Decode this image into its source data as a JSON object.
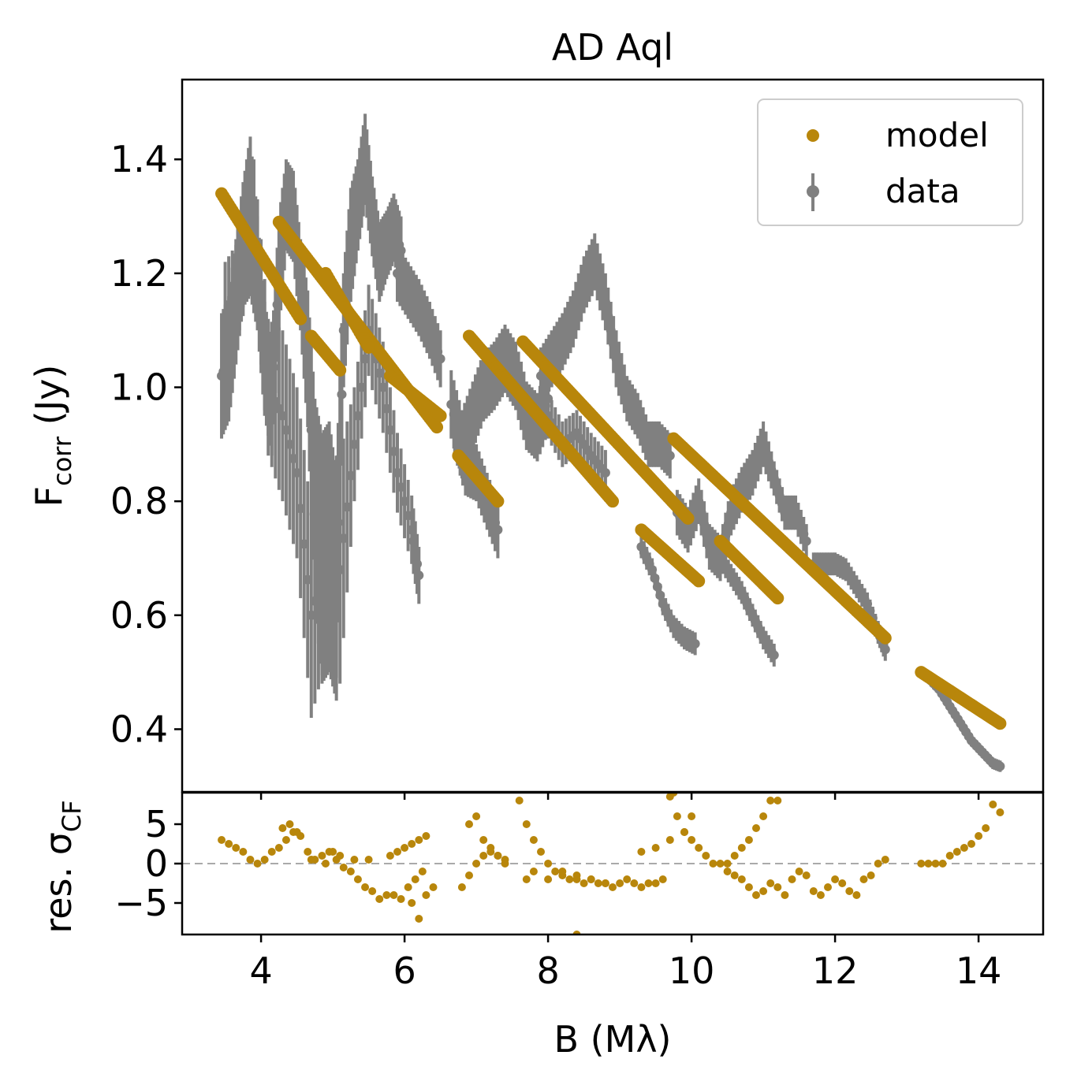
{
  "chart_data": [
    {
      "type": "scatter",
      "title": "AD Aql",
      "xlabel": "B (Mλ)",
      "ylabel": {
        "main": "F",
        "sub": "corr",
        "unit": " (Jy)"
      },
      "xlim": [
        2.9,
        14.9
      ],
      "ylim": [
        0.29,
        1.54
      ],
      "xticks": [
        4,
        6,
        8,
        10,
        12,
        14
      ],
      "xtick_labels": [
        "4",
        "6",
        "8",
        "10",
        "12",
        "14"
      ],
      "yticks": [
        0.4,
        0.6,
        0.8,
        1.0,
        1.2,
        1.4
      ],
      "ytick_labels": [
        "0.4",
        "0.6",
        "0.8",
        "1.0",
        "1.2",
        "1.4"
      ],
      "legend": {
        "position": "top-right",
        "entries": [
          "model",
          "data"
        ]
      },
      "colors": {
        "model": "#b8860b",
        "data": "#808080"
      },
      "series": [
        {
          "name": "data",
          "marker": "point-with-errorbar",
          "segments": [
            {
              "x": [
                3.45,
                3.55,
                3.65,
                3.75,
                3.85,
                3.95,
                4.05,
                4.15,
                4.25,
                4.35,
                4.45,
                4.55,
                4.65,
                4.75,
                4.85,
                4.95,
                5.05,
                5.15,
                5.25,
                5.35,
                5.45,
                5.55,
                5.65,
                5.75,
                5.85,
                5.95
              ],
              "y": [
                1.02,
                1.05,
                1.15,
                1.25,
                1.3,
                1.2,
                1.05,
                0.98,
                1.2,
                1.32,
                1.3,
                1.18,
                1.05,
                0.8,
                0.7,
                0.72,
                0.65,
                1.1,
                1.25,
                1.32,
                1.4,
                1.3,
                1.22,
                1.25,
                1.28,
                1.24
              ],
              "err": [
                0.11,
                0.11,
                0.11,
                0.11,
                0.14,
                0.1,
                0.1,
                0.1,
                0.1,
                0.08,
                0.08,
                0.08,
                0.12,
                0.18,
                0.22,
                0.22,
                0.2,
                0.1,
                0.1,
                0.08,
                0.08,
                0.07,
                0.07,
                0.06,
                0.06,
                0.06
              ]
            },
            {
              "x": [
                3.5,
                3.7,
                3.9,
                4.1,
                4.3,
                4.5,
                4.7,
                4.9,
                5.1,
                5.3,
                5.5,
                5.7,
                5.9,
                6.1,
                6.2
              ],
              "y": [
                1.12,
                1.18,
                1.3,
                1.0,
                0.95,
                0.85,
                0.6,
                0.7,
                0.68,
                0.9,
                1.1,
                1.0,
                0.85,
                0.75,
                0.67
              ],
              "err": [
                0.1,
                0.08,
                0.1,
                0.12,
                0.15,
                0.15,
                0.18,
                0.18,
                0.2,
                0.1,
                0.08,
                0.08,
                0.07,
                0.06,
                0.05
              ]
            },
            {
              "x": [
                5.9,
                6.05,
                6.2,
                6.35,
                6.5
              ],
              "y": [
                1.2,
                1.17,
                1.14,
                1.1,
                1.05
              ],
              "err": [
                0.05,
                0.05,
                0.05,
                0.05,
                0.05
              ]
            },
            {
              "x": [
                6.7,
                6.85,
                7.0,
                7.15,
                7.3
              ],
              "y": [
                0.93,
                0.86,
                0.85,
                0.8,
                0.75
              ],
              "err": [
                0.05,
                0.05,
                0.05,
                0.05,
                0.05
              ]
            },
            {
              "x": [
                6.65,
                6.8,
                6.95,
                7.1,
                7.25,
                7.4,
                7.55,
                7.7,
                7.85,
                8.0
              ],
              "y": [
                0.97,
                0.9,
                0.95,
                1.0,
                1.02,
                1.05,
                1.02,
                0.95,
                0.93,
                0.98
              ],
              "err": [
                0.06,
                0.06,
                0.06,
                0.06,
                0.06,
                0.06,
                0.06,
                0.06,
                0.06,
                0.06
              ]
            },
            {
              "x": [
                7.9,
                8.05,
                8.2,
                8.35,
                8.5,
                8.65,
                8.8,
                8.95,
                9.1,
                9.25,
                9.4,
                9.55,
                9.7
              ],
              "y": [
                1.02,
                1.05,
                1.08,
                1.12,
                1.18,
                1.22,
                1.15,
                1.05,
                0.98,
                0.95,
                0.9,
                0.9,
                0.88
              ],
              "err": [
                0.05,
                0.05,
                0.05,
                0.05,
                0.05,
                0.05,
                0.05,
                0.05,
                0.04,
                0.04,
                0.04,
                0.04,
                0.04
              ]
            },
            {
              "x": [
                8.0,
                8.2,
                8.4,
                8.6,
                8.8
              ],
              "y": [
                0.95,
                0.9,
                0.92,
                0.88,
                0.85
              ],
              "err": [
                0.04,
                0.04,
                0.04,
                0.04,
                0.04
              ]
            },
            {
              "x": [
                9.3,
                9.45,
                9.6,
                9.75,
                9.9,
                10.05
              ],
              "y": [
                0.72,
                0.68,
                0.62,
                0.58,
                0.56,
                0.55
              ],
              "err": [
                0.02,
                0.02,
                0.02,
                0.02,
                0.02,
                0.02
              ]
            },
            {
              "x": [
                9.8,
                9.95,
                10.1,
                10.25,
                10.4,
                10.55,
                10.7,
                10.85,
                11.0,
                11.15,
                11.3,
                11.45,
                11.6
              ],
              "y": [
                0.78,
                0.75,
                0.8,
                0.72,
                0.7,
                0.78,
                0.82,
                0.85,
                0.9,
                0.84,
                0.78,
                0.78,
                0.73
              ],
              "err": [
                0.04,
                0.04,
                0.04,
                0.04,
                0.04,
                0.04,
                0.04,
                0.04,
                0.04,
                0.03,
                0.03,
                0.03,
                0.03
              ]
            },
            {
              "x": [
                10.4,
                10.55,
                10.7,
                10.85,
                11.0,
                11.15
              ],
              "y": [
                0.7,
                0.67,
                0.64,
                0.6,
                0.56,
                0.53
              ],
              "err": [
                0.02,
                0.02,
                0.02,
                0.02,
                0.02,
                0.02
              ]
            },
            {
              "x": [
                11.7,
                11.85,
                12.0,
                12.15,
                12.3,
                12.45,
                12.6,
                12.7
              ],
              "y": [
                0.69,
                0.69,
                0.69,
                0.68,
                0.65,
                0.62,
                0.57,
                0.54
              ],
              "err": [
                0.02,
                0.02,
                0.02,
                0.02,
                0.02,
                0.02,
                0.02,
                0.02
              ]
            },
            {
              "x": [
                13.3,
                13.45,
                13.6,
                13.75,
                13.9,
                14.05,
                14.2,
                14.3
              ],
              "y": [
                0.49,
                0.47,
                0.44,
                0.41,
                0.38,
                0.36,
                0.34,
                0.335
              ],
              "err": [
                0.01,
                0.01,
                0.01,
                0.01,
                0.01,
                0.01,
                0.01,
                0.01
              ]
            }
          ]
        },
        {
          "name": "model",
          "marker": "point",
          "segments": [
            {
              "x": [
                3.45,
                4.55
              ],
              "y": [
                1.34,
                1.12
              ]
            },
            {
              "x": [
                4.7,
                5.1
              ],
              "y": [
                1.09,
                1.03
              ]
            },
            {
              "x": [
                4.25,
                6.45
              ],
              "y": [
                1.29,
                0.93
              ]
            },
            {
              "x": [
                4.9,
                5.5
              ],
              "y": [
                1.2,
                1.07
              ]
            },
            {
              "x": [
                5.8,
                6.5
              ],
              "y": [
                1.02,
                0.95
              ]
            },
            {
              "x": [
                6.75,
                7.3
              ],
              "y": [
                0.88,
                0.8
              ]
            },
            {
              "x": [
                6.9,
                8.9
              ],
              "y": [
                1.09,
                0.8
              ]
            },
            {
              "x": [
                7.65,
                9.95
              ],
              "y": [
                1.08,
                0.77
              ]
            },
            {
              "x": [
                9.3,
                10.1
              ],
              "y": [
                0.75,
                0.66
              ]
            },
            {
              "x": [
                9.75,
                12.7
              ],
              "y": [
                0.91,
                0.56
              ]
            },
            {
              "x": [
                10.4,
                11.2
              ],
              "y": [
                0.73,
                0.63
              ]
            },
            {
              "x": [
                13.2,
                14.3
              ],
              "y": [
                0.5,
                0.41
              ]
            }
          ]
        }
      ]
    },
    {
      "type": "scatter",
      "title": "",
      "xlabel": "B (Mλ)",
      "ylabel": {
        "main": "res. σ",
        "sub": "CF"
      },
      "xlim": [
        2.9,
        14.9
      ],
      "ylim": [
        -9,
        9
      ],
      "xticks": [
        4,
        6,
        8,
        10,
        12,
        14
      ],
      "xtick_labels": [
        "4",
        "6",
        "8",
        "10",
        "12",
        "14"
      ],
      "yticks": [
        5,
        0,
        -5
      ],
      "ytick_labels": [
        "5",
        "0",
        "−5"
      ],
      "reference_line": 0,
      "colors": {
        "residual": "#b8860b",
        "reference": "#aaaaaa"
      },
      "series": [
        {
          "name": "residual",
          "x": [
            3.45,
            3.55,
            3.65,
            3.75,
            3.85,
            3.95,
            4.05,
            4.15,
            4.25,
            4.35,
            4.45,
            4.55,
            4.65,
            4.75,
            4.85,
            4.95,
            5.05,
            5.15,
            5.25,
            5.35,
            5.45,
            5.55,
            5.65,
            5.75,
            5.85,
            5.95,
            6.05,
            6.15,
            6.25,
            4.3,
            4.4,
            4.5,
            4.7,
            4.9,
            5.0,
            5.1,
            5.3,
            5.5,
            5.8,
            5.9,
            6.0,
            6.1,
            6.2,
            6.3,
            6.1,
            6.2,
            6.3,
            6.4,
            6.9,
            7.0,
            7.1,
            7.2,
            7.3,
            7.4,
            6.8,
            6.9,
            7.0,
            7.1,
            7.2,
            7.3,
            7.4,
            7.6,
            7.7,
            7.8,
            7.9,
            8.0,
            8.1,
            8.2,
            8.3,
            8.4,
            8.5,
            8.6,
            8.7,
            8.8,
            8.9,
            9.0,
            9.1,
            9.2,
            9.3,
            9.4,
            9.5,
            9.6,
            9.7,
            9.8,
            9.9,
            10.0,
            10.1,
            10.2,
            10.3,
            10.4,
            10.5,
            10.6,
            10.7,
            10.8,
            10.9,
            11.0,
            11.1,
            11.2,
            11.3,
            11.4,
            11.5,
            11.6,
            11.7,
            11.8,
            11.9,
            12.0,
            12.1,
            12.2,
            12.3,
            12.4,
            12.5,
            12.6,
            12.7,
            10.5,
            10.6,
            10.7,
            10.8,
            10.9,
            11.0,
            11.1,
            11.2,
            13.2,
            13.3,
            13.4,
            13.5,
            13.6,
            13.7,
            13.8,
            13.9,
            14.0,
            14.1,
            14.2,
            14.3,
            7.7,
            7.8,
            8.0,
            8.2,
            8.4,
            8.6,
            8.8,
            9.3,
            9.5,
            9.7,
            9.9,
            10.0,
            8.4,
            9.75
          ],
          "y": [
            3,
            2.5,
            2,
            1.5,
            0.5,
            0,
            0.5,
            1.5,
            2,
            3,
            4,
            3.5,
            1.5,
            0.5,
            1,
            1.5,
            0.5,
            -0.5,
            -1,
            -2,
            -3,
            -3.5,
            -4.5,
            -4,
            -4,
            -4.5,
            -3,
            -2,
            -1,
            4.5,
            5,
            4,
            0.5,
            0,
            1.5,
            1,
            0.5,
            0.5,
            1,
            1.5,
            2,
            2.5,
            3,
            3.5,
            -5,
            -7,
            -4,
            -3,
            5,
            6,
            3,
            1.5,
            1,
            0.5,
            -3,
            -1.5,
            0,
            1,
            2,
            1,
            0,
            8,
            5,
            3,
            1.5,
            0,
            -1,
            -1.5,
            -2,
            -2,
            -2.5,
            -2,
            -2.5,
            -2.5,
            -3,
            -2.5,
            -2,
            -2.5,
            -3,
            -2.5,
            -2.5,
            -2,
            8.5,
            6,
            4,
            3,
            2,
            1,
            0,
            0,
            -1,
            -1.5,
            -2,
            -3,
            -4,
            -3.5,
            -2.5,
            -3,
            -4,
            -2,
            -1,
            -1.5,
            -3.5,
            -4,
            -3,
            -2,
            -2.5,
            -3.5,
            -4,
            -2,
            -1.5,
            0,
            0.5,
            0,
            1,
            2,
            3,
            4.5,
            6,
            8,
            8,
            0,
            0,
            0,
            0,
            1,
            1.5,
            2,
            2.5,
            3.5,
            4.5,
            7.5,
            6.5,
            -2,
            -1,
            -2,
            -1,
            -1.5,
            -2,
            -2.5,
            1.5,
            2,
            3,
            4,
            6,
            -9,
            9
          ]
        }
      ]
    }
  ]
}
